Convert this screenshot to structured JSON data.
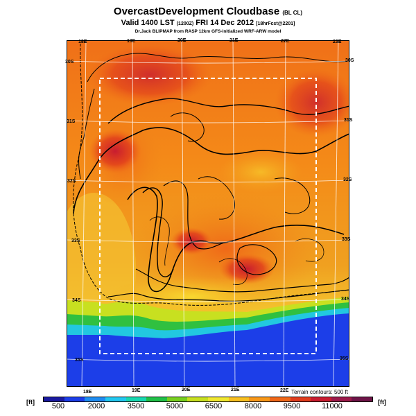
{
  "title": {
    "main": "OvercastDevelopment Cloudbase",
    "suffix": "(BL CL)",
    "valid": "Valid 1400 LST",
    "valid_code": "(1200Z)",
    "date": "FRI 14 Dec 2012",
    "forecast": "[18hrFcst@2201]",
    "credit": "Dr.Jack BLIPMAP from RASP 12km GFS-initialized WRF-ARW model"
  },
  "axes": {
    "top_lon": [
      "18E",
      "19E",
      "20E",
      "21E",
      "22E",
      "23E"
    ],
    "bottom_lon": [
      "18E",
      "19E",
      "20E",
      "21E",
      "22E"
    ],
    "lat_left": [
      "30S",
      "31S",
      "32S",
      "33S",
      "34S",
      "35S"
    ],
    "lat_right": [
      "30S",
      "31S",
      "32S",
      "33S",
      "34S",
      "35S"
    ]
  },
  "terrain_note": "Terrain contours: 500 ft",
  "legend": {
    "unit_left": "[ft]",
    "unit_right": "[ft]",
    "labels": [
      "500",
      "2000",
      "3500",
      "5000",
      "6500",
      "8000",
      "9500",
      "11000"
    ],
    "colors": [
      "#1a1aa0",
      "#1c3ee8",
      "#1e8cf0",
      "#22c8f0",
      "#18d8b0",
      "#20c048",
      "#78d020",
      "#c8e020",
      "#f0e830",
      "#f8c020",
      "#f89818",
      "#f06818",
      "#e03c1c",
      "#c81c30",
      "#9c1a4a",
      "#6e1448"
    ]
  }
}
